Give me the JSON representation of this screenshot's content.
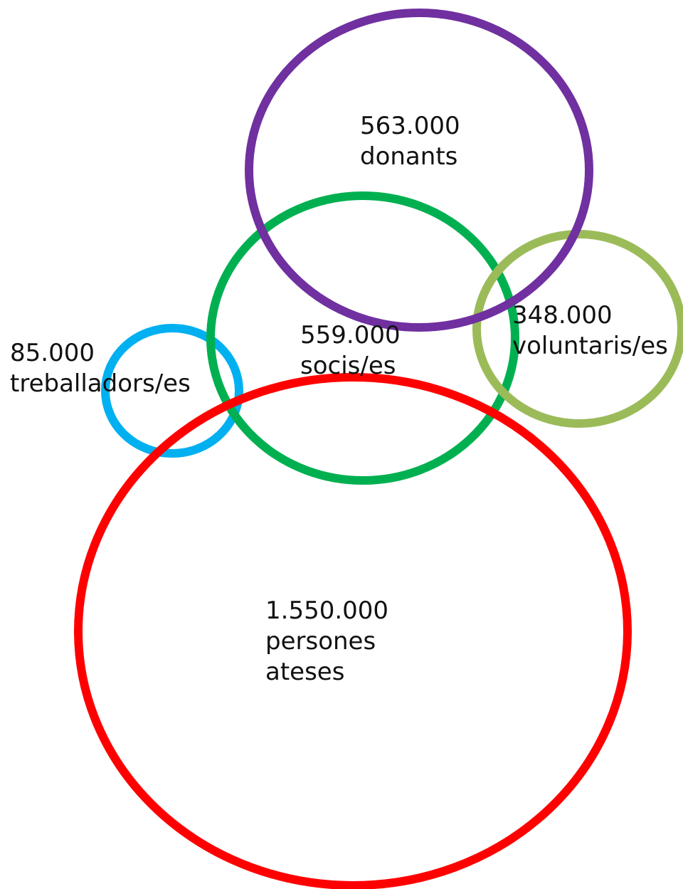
{
  "groups": [
    {
      "id": "donants",
      "value": "563.000",
      "label": [
        "donants"
      ],
      "color": "#7030a0"
    },
    {
      "id": "socis",
      "value": "559.000",
      "label": [
        "socis/es"
      ],
      "color": "#00b050"
    },
    {
      "id": "voluntaris",
      "value": "348.000",
      "label": [
        "voluntaris/es"
      ],
      "color": "#9bbb59"
    },
    {
      "id": "treballadors",
      "value": "85.000",
      "label": [
        "treballadors/es"
      ],
      "color": "#00b0f0"
    },
    {
      "id": "ateses",
      "value": "1.550.000",
      "label": [
        "persones",
        "ateses"
      ],
      "color": "#ff0000"
    }
  ]
}
